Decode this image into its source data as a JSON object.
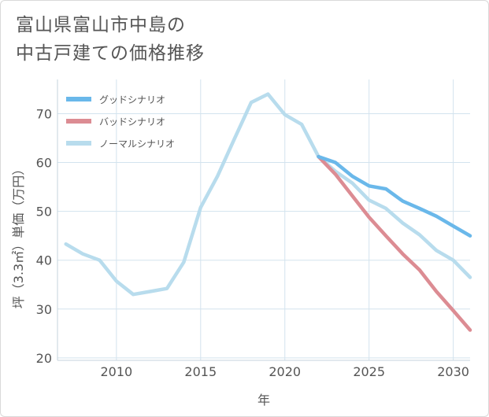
{
  "title_lines": [
    "富山県富山市中島の",
    "中古戸建ての価格推移"
  ],
  "chart_data": {
    "type": "line",
    "xlabel": "年",
    "ylabel": "坪（3.3㎡）単価（万円）",
    "xlim": [
      2006.5,
      2031
    ],
    "ylim": [
      19.5,
      77
    ],
    "xticks": [
      2010,
      2015,
      2020,
      2025,
      2030
    ],
    "yticks": [
      20,
      30,
      40,
      50,
      60,
      70
    ],
    "grid": true,
    "legend_position": "top-left",
    "series": [
      {
        "name": "グッドシナリオ",
        "color": "#6ab8ea",
        "x": [
          2022,
          2023,
          2024,
          2025,
          2026,
          2027,
          2028,
          2029,
          2030,
          2031
        ],
        "y": [
          61.2,
          60.0,
          57.2,
          55.2,
          54.6,
          52.1,
          50.6,
          49.0,
          47.0,
          45.0
        ]
      },
      {
        "name": "バッドシナリオ",
        "color": "#dc8c93",
        "x": [
          2022,
          2023,
          2024,
          2025,
          2026,
          2027,
          2028,
          2029,
          2030,
          2031
        ],
        "y": [
          61.2,
          57.6,
          53.2,
          48.8,
          45.0,
          41.3,
          38.0,
          33.6,
          29.7,
          25.7
        ]
      },
      {
        "name": "ノーマルシナリオ",
        "color": "#b8dced",
        "x": [
          2007,
          2008,
          2009,
          2010,
          2011,
          2012,
          2013,
          2014,
          2015,
          2016,
          2017,
          2018,
          2019,
          2020,
          2021,
          2022,
          2023,
          2024,
          2025,
          2026,
          2027,
          2028,
          2029,
          2030,
          2031
        ],
        "y": [
          43.3,
          41.3,
          40.0,
          35.7,
          33.0,
          33.6,
          34.2,
          39.6,
          50.8,
          57.2,
          64.8,
          72.3,
          74.0,
          69.8,
          67.8,
          61.2,
          58.2,
          55.8,
          52.3,
          50.6,
          47.6,
          45.2,
          42.0,
          40.0,
          36.5
        ]
      }
    ]
  }
}
